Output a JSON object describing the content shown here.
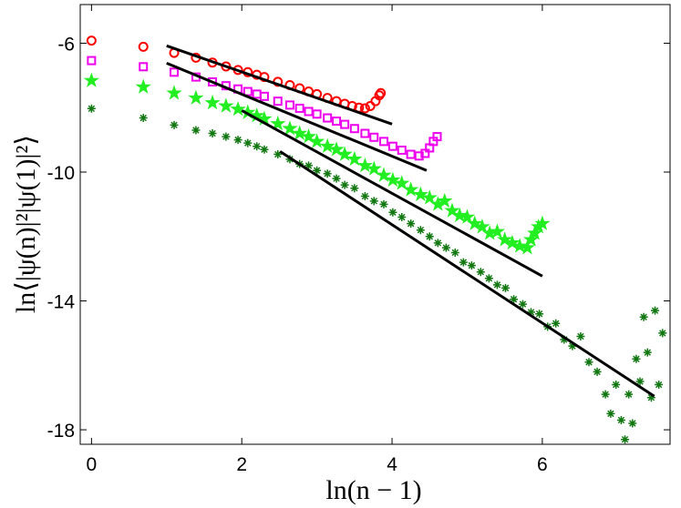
{
  "chart_data": {
    "type": "scatter",
    "xlabel": "ln(n − 1)",
    "ylabel": "ln⟨|ψ(n)|²|ψ(1)|²⟩",
    "xlim": [
      -0.15,
      7.7
    ],
    "ylim": [
      -18.45,
      -4.8
    ],
    "xticks": [
      0,
      2,
      4,
      6
    ],
    "yticks": [
      -6,
      -10,
      -14,
      -18
    ],
    "series": [
      {
        "color": "#ff0000",
        "marker": "circle",
        "x": [
          0,
          0.69,
          1.1,
          1.39,
          1.61,
          1.79,
          1.95,
          2.08,
          2.2,
          2.3,
          2.48,
          2.64,
          2.77,
          2.89,
          3.0,
          3.14,
          3.26,
          3.37,
          3.47,
          3.56,
          3.64,
          3.71,
          3.78,
          3.83,
          3.85
        ],
        "values": [
          -5.92,
          -6.11,
          -6.3,
          -6.45,
          -6.6,
          -6.72,
          -6.83,
          -6.9,
          -6.98,
          -7.05,
          -7.2,
          -7.3,
          -7.4,
          -7.5,
          -7.58,
          -7.7,
          -7.8,
          -7.88,
          -7.95,
          -8.0,
          -8.02,
          -7.95,
          -7.8,
          -7.62,
          -7.55
        ]
      },
      {
        "color": "#ee00ee",
        "marker": "square",
        "x": [
          0,
          0.69,
          1.1,
          1.39,
          1.61,
          1.79,
          1.95,
          2.08,
          2.2,
          2.3,
          2.48,
          2.64,
          2.77,
          2.89,
          3.0,
          3.14,
          3.26,
          3.37,
          3.5,
          3.64,
          3.76,
          3.89,
          4.01,
          4.13,
          4.25,
          4.36,
          4.44,
          4.5,
          4.55,
          4.6
        ],
        "values": [
          -6.54,
          -6.73,
          -6.9,
          -7.05,
          -7.2,
          -7.32,
          -7.42,
          -7.5,
          -7.58,
          -7.65,
          -7.8,
          -7.92,
          -8.02,
          -8.12,
          -8.2,
          -8.32,
          -8.42,
          -8.52,
          -8.65,
          -8.8,
          -8.92,
          -9.05,
          -9.2,
          -9.32,
          -9.45,
          -9.5,
          -9.42,
          -9.25,
          -9.05,
          -8.9
        ]
      },
      {
        "color": "#22ee22",
        "marker": "star",
        "x": [
          0,
          0.69,
          1.1,
          1.39,
          1.61,
          1.79,
          1.95,
          2.08,
          2.2,
          2.3,
          2.48,
          2.64,
          2.77,
          2.89,
          3.0,
          3.14,
          3.26,
          3.37,
          3.5,
          3.64,
          3.76,
          3.89,
          4.01,
          4.13,
          4.25,
          4.38,
          4.5,
          4.61,
          4.7,
          4.8,
          4.9,
          5.0,
          5.1,
          5.2,
          5.3,
          5.4,
          5.5,
          5.6,
          5.7,
          5.8,
          5.85,
          5.9,
          5.95,
          6.0
        ],
        "values": [
          -7.16,
          -7.36,
          -7.55,
          -7.7,
          -7.85,
          -7.95,
          -8.05,
          -8.15,
          -8.25,
          -8.35,
          -8.5,
          -8.65,
          -8.8,
          -8.9,
          -9.05,
          -9.2,
          -9.3,
          -9.45,
          -9.6,
          -9.8,
          -9.9,
          -10.1,
          -10.25,
          -10.35,
          -10.55,
          -10.7,
          -10.8,
          -11.0,
          -10.9,
          -11.2,
          -11.35,
          -11.4,
          -11.6,
          -11.7,
          -11.9,
          -11.85,
          -12.1,
          -12.2,
          -12.3,
          -12.35,
          -12.1,
          -11.9,
          -11.7,
          -11.6
        ]
      },
      {
        "color": "#117711",
        "marker": "asterisk",
        "x": [
          0,
          0.69,
          1.1,
          1.39,
          1.61,
          1.79,
          1.95,
          2.08,
          2.2,
          2.3,
          2.48,
          2.64,
          2.77,
          2.89,
          3.0,
          3.14,
          3.26,
          3.37,
          3.5,
          3.64,
          3.76,
          3.89,
          4.01,
          4.13,
          4.25,
          4.38,
          4.5,
          4.61,
          4.72,
          4.84,
          4.95,
          5.06,
          5.18,
          5.29,
          5.4,
          5.51,
          5.62,
          5.74,
          5.85,
          5.96,
          6.07,
          6.18,
          6.29,
          6.4,
          6.51,
          6.62,
          6.73,
          6.84,
          6.91,
          6.98,
          7.05,
          7.1,
          7.15,
          7.2,
          7.25,
          7.3,
          7.35,
          7.4,
          7.45,
          7.5,
          7.55,
          7.6
        ],
        "values": [
          -8.03,
          -8.32,
          -8.54,
          -8.7,
          -8.8,
          -8.9,
          -9.0,
          -9.1,
          -9.2,
          -9.3,
          -9.45,
          -9.6,
          -9.75,
          -9.8,
          -9.95,
          -10.05,
          -10.2,
          -10.4,
          -10.5,
          -10.75,
          -10.9,
          -11.0,
          -11.25,
          -11.4,
          -11.6,
          -11.8,
          -12.0,
          -12.2,
          -12.35,
          -12.5,
          -12.8,
          -12.9,
          -13.1,
          -13.3,
          -13.5,
          -13.6,
          -13.95,
          -14.1,
          -14.35,
          -14.4,
          -14.8,
          -14.7,
          -15.2,
          -15.4,
          -15.1,
          -15.9,
          -16.2,
          -16.9,
          -17.5,
          -16.6,
          -17.7,
          -18.3,
          -16.9,
          -17.8,
          -15.8,
          -16.5,
          -14.5,
          -15.6,
          -17.0,
          -14.3,
          -16.6,
          -15.0
        ]
      }
    ],
    "fit_lines": [
      {
        "color": "#000000",
        "x": [
          1,
          4
        ],
        "y": [
          -6.08,
          -8.51
        ]
      },
      {
        "color": "#000000",
        "x": [
          1,
          4.46
        ],
        "y": [
          -6.62,
          -9.95
        ]
      },
      {
        "color": "#000000",
        "x": [
          2,
          6
        ],
        "y": [
          -8.09,
          -13.23
        ]
      },
      {
        "color": "#000000",
        "x": [
          2.51,
          7.49
        ],
        "y": [
          -9.36,
          -16.96
        ]
      }
    ]
  }
}
